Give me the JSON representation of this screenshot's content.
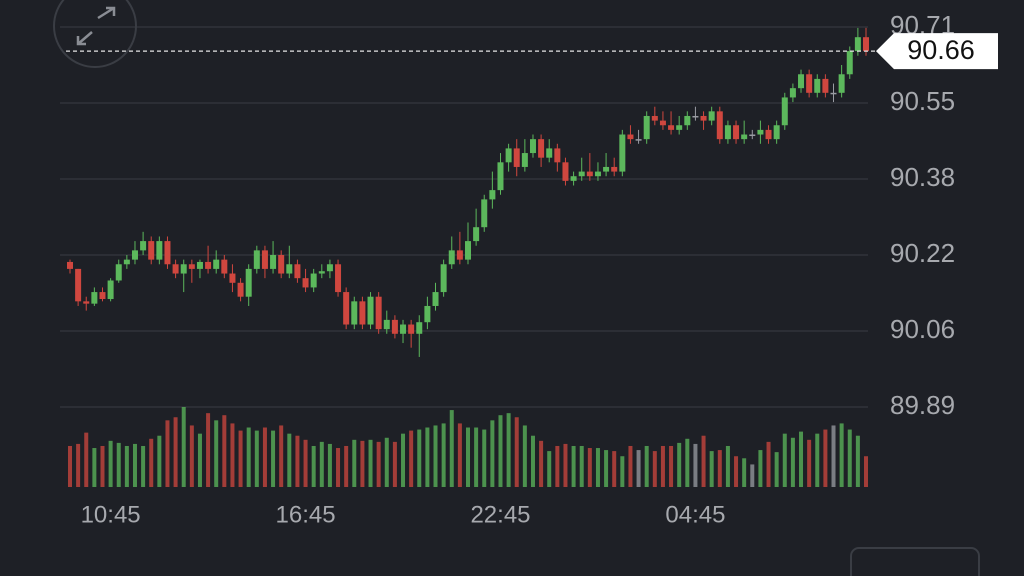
{
  "chart_data": {
    "type": "candlestick",
    "categories": [
      null,
      null,
      null,
      null,
      null,
      "10:45",
      null,
      null,
      null,
      null,
      null,
      null,
      null,
      null,
      null,
      null,
      null,
      null,
      null,
      null,
      null,
      null,
      null,
      null,
      null,
      null,
      null,
      null,
      null,
      "16:45",
      null,
      null,
      null,
      null,
      null,
      null,
      null,
      null,
      null,
      null,
      null,
      null,
      null,
      null,
      null,
      null,
      null,
      null,
      null,
      null,
      null,
      null,
      null,
      "22:45",
      null,
      null,
      null,
      null,
      null,
      null,
      null,
      null,
      null,
      null,
      null,
      null,
      null,
      null,
      null,
      null,
      null,
      null,
      null,
      null,
      null,
      null,
      null,
      "04:45",
      null,
      null,
      null,
      null,
      null,
      null,
      null,
      null,
      null,
      null,
      null,
      null,
      null,
      null,
      null,
      null,
      null,
      null,
      null,
      null,
      null
    ],
    "open": [
      90.205,
      90.19,
      90.12,
      90.115,
      90.14,
      90.125,
      90.165,
      90.2,
      90.21,
      90.23,
      90.25,
      90.21,
      90.25,
      90.2,
      90.18,
      90.2,
      90.19,
      90.205,
      90.19,
      90.21,
      90.18,
      90.16,
      90.13,
      90.19,
      90.23,
      90.19,
      90.22,
      90.18,
      90.2,
      90.17,
      90.15,
      90.18,
      90.185,
      90.2,
      90.14,
      90.07,
      90.12,
      90.07,
      90.13,
      90.06,
      90.08,
      90.05,
      90.07,
      90.05,
      90.075,
      90.11,
      90.14,
      90.2,
      90.23,
      90.21,
      90.25,
      90.28,
      90.34,
      90.36,
      90.42,
      90.45,
      90.41,
      90.44,
      90.47,
      90.43,
      90.45,
      90.42,
      90.38,
      90.39,
      90.4,
      90.39,
      90.4,
      90.41,
      90.4,
      90.48,
      90.47,
      90.47,
      90.52,
      90.51,
      90.5,
      90.49,
      90.5,
      90.52,
      90.52,
      90.51,
      90.53,
      90.47,
      90.5,
      90.47,
      90.48,
      90.48,
      90.49,
      90.47,
      90.5,
      90.56,
      90.58,
      90.61,
      90.57,
      90.6,
      90.57,
      90.57,
      90.61,
      90.66,
      90.69
    ],
    "high": [
      90.21,
      90.19,
      90.13,
      90.15,
      90.15,
      90.17,
      90.21,
      90.22,
      90.25,
      90.27,
      90.26,
      90.26,
      90.26,
      90.21,
      90.21,
      90.21,
      90.21,
      90.24,
      90.23,
      90.22,
      90.2,
      90.17,
      90.2,
      90.24,
      90.24,
      90.25,
      90.23,
      90.24,
      90.21,
      90.19,
      90.19,
      90.2,
      90.21,
      90.21,
      90.15,
      90.13,
      90.13,
      90.14,
      90.14,
      90.1,
      90.09,
      90.08,
      90.08,
      90.09,
      90.13,
      90.16,
      90.21,
      90.26,
      90.27,
      90.29,
      90.32,
      90.35,
      90.4,
      90.44,
      90.46,
      90.47,
      90.47,
      90.48,
      90.48,
      90.47,
      90.46,
      90.43,
      90.4,
      90.43,
      90.44,
      90.42,
      90.44,
      90.43,
      90.49,
      90.5,
      90.49,
      90.53,
      90.54,
      90.53,
      90.53,
      90.52,
      90.53,
      90.54,
      90.53,
      90.54,
      90.54,
      90.51,
      90.51,
      90.51,
      90.49,
      90.51,
      90.5,
      90.51,
      90.57,
      90.59,
      90.62,
      90.62,
      90.61,
      90.61,
      90.59,
      90.63,
      90.67,
      90.71,
      90.71
    ],
    "low": [
      90.18,
      90.11,
      90.1,
      90.11,
      90.12,
      90.12,
      90.16,
      90.19,
      90.2,
      90.22,
      90.2,
      90.2,
      90.19,
      90.17,
      90.14,
      90.16,
      90.17,
      90.18,
      90.18,
      90.17,
      90.14,
      90.12,
      90.11,
      90.18,
      90.17,
      90.18,
      90.17,
      90.17,
      90.16,
      90.14,
      90.14,
      90.17,
      90.17,
      90.13,
      90.06,
      90.06,
      90.06,
      90.06,
      90.05,
      90.05,
      90.04,
      90.03,
      90.02,
      90.0,
      90.06,
      90.1,
      90.13,
      90.19,
      90.2,
      90.2,
      90.24,
      90.27,
      90.32,
      90.35,
      90.4,
      90.39,
      90.4,
      90.43,
      90.41,
      90.42,
      90.4,
      90.37,
      90.37,
      90.38,
      90.38,
      90.38,
      90.39,
      90.39,
      90.39,
      90.46,
      90.46,
      90.46,
      90.5,
      90.49,
      90.48,
      90.48,
      90.49,
      90.51,
      90.49,
      90.5,
      90.46,
      90.46,
      90.46,
      90.46,
      90.47,
      90.46,
      90.46,
      90.46,
      90.49,
      90.55,
      90.57,
      90.56,
      90.56,
      90.56,
      90.55,
      90.56,
      90.6,
      90.65,
      90.65
    ],
    "close": [
      90.19,
      90.12,
      90.115,
      90.14,
      90.125,
      90.165,
      90.2,
      90.21,
      90.23,
      90.25,
      90.21,
      90.25,
      90.2,
      90.18,
      90.2,
      90.19,
      90.205,
      90.19,
      90.21,
      90.18,
      90.16,
      90.13,
      90.19,
      90.23,
      90.19,
      90.22,
      90.18,
      90.2,
      90.17,
      90.15,
      90.18,
      90.185,
      90.2,
      90.14,
      90.07,
      90.12,
      90.07,
      90.13,
      90.06,
      90.08,
      90.05,
      90.07,
      90.05,
      90.075,
      90.11,
      90.14,
      90.2,
      90.23,
      90.21,
      90.25,
      90.28,
      90.34,
      90.36,
      90.42,
      90.45,
      90.41,
      90.44,
      90.47,
      90.43,
      90.45,
      90.42,
      90.38,
      90.39,
      90.4,
      90.39,
      90.4,
      90.41,
      90.4,
      90.48,
      90.47,
      90.47,
      90.52,
      90.51,
      90.5,
      90.49,
      90.5,
      90.52,
      90.52,
      90.51,
      90.53,
      90.47,
      90.5,
      90.47,
      90.48,
      90.48,
      90.49,
      90.47,
      90.5,
      90.56,
      90.58,
      90.61,
      90.57,
      90.6,
      90.57,
      90.57,
      90.61,
      90.66,
      90.69,
      90.66
    ],
    "volume": [
      40,
      42,
      53,
      38,
      40,
      45,
      43,
      40,
      42,
      40,
      47,
      50,
      65,
      68,
      78,
      60,
      52,
      72,
      65,
      70,
      62,
      55,
      58,
      55,
      58,
      55,
      60,
      52,
      50,
      46,
      40,
      44,
      42,
      38,
      40,
      46,
      45,
      46,
      44,
      48,
      44,
      52,
      55,
      56,
      58,
      60,
      62,
      75,
      62,
      58,
      58,
      56,
      65,
      70,
      72,
      68,
      60,
      50,
      45,
      35,
      40,
      42,
      40,
      40,
      38,
      38,
      36,
      35,
      30,
      40,
      36,
      40,
      35,
      40,
      40,
      43,
      47,
      42,
      50,
      35,
      36,
      40,
      30,
      28,
      22,
      36,
      44,
      34,
      52,
      48,
      54,
      46,
      52,
      56,
      60,
      62,
      56,
      50,
      30
    ],
    "up_color": "#5cb85c",
    "down_color": "#d0473f",
    "flat_color": "#9a9ca3",
    "ylim": [
      89.892,
      90.712
    ],
    "yticks": [
      {
        "value": 90.712,
        "label": "90.71"
      },
      {
        "value": 90.548,
        "label": "90.55"
      },
      {
        "value": 90.384,
        "label": "90.38"
      },
      {
        "value": 90.22,
        "label": "90.22"
      },
      {
        "value": 90.056,
        "label": "90.06"
      },
      {
        "value": 89.892,
        "label": "89.89"
      }
    ],
    "grid": true,
    "last_price": 90.66
  }
}
